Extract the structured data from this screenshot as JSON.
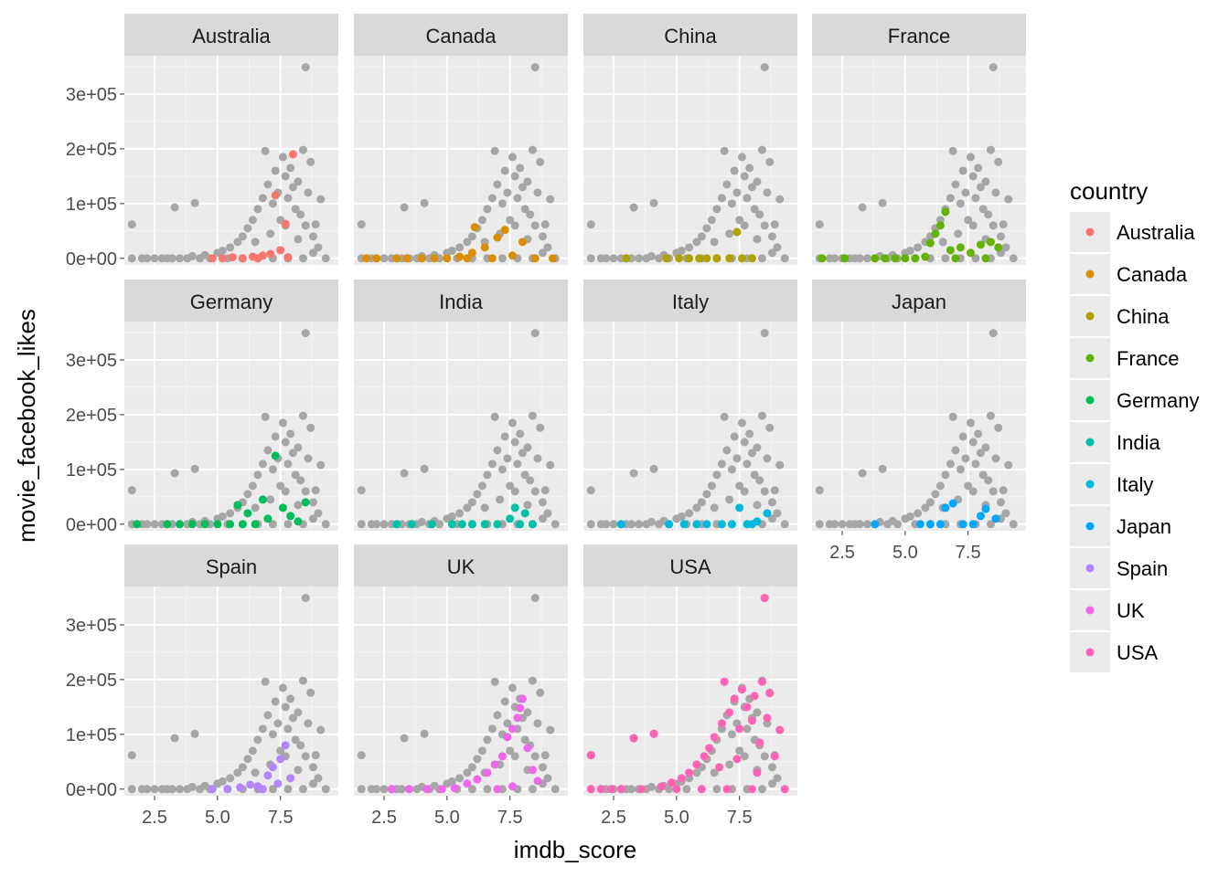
{
  "chart_data": {
    "type": "scatter",
    "facet_by": "country",
    "facets": [
      "Australia",
      "Canada",
      "China",
      "France",
      "Germany",
      "India",
      "Italy",
      "Japan",
      "Spain",
      "UK",
      "USA"
    ],
    "xlabel": "imdb_score",
    "ylabel": "movie_facebook_likes",
    "x_ticks": [
      2.5,
      5.0,
      7.5
    ],
    "x_tick_labels": [
      "2.5",
      "5.0",
      "7.5"
    ],
    "y_ticks": [
      0,
      100000,
      200000,
      300000
    ],
    "y_tick_labels": [
      "0e+00",
      "1e+05",
      "2e+05",
      "3e+05"
    ],
    "xlim": [
      1.3,
      9.8
    ],
    "ylim": [
      -12000,
      370000
    ],
    "legend": {
      "title": "country",
      "position": "right",
      "entries": [
        {
          "label": "Australia",
          "color": "#F8766D"
        },
        {
          "label": "Canada",
          "color": "#DB8E00"
        },
        {
          "label": "China",
          "color": "#AEA200"
        },
        {
          "label": "France",
          "color": "#64B200"
        },
        {
          "label": "Germany",
          "color": "#00BD5C"
        },
        {
          "label": "India",
          "color": "#00C1A7"
        },
        {
          "label": "Italy",
          "color": "#00BADE"
        },
        {
          "label": "Japan",
          "color": "#00A6FF"
        },
        {
          "label": "Spain",
          "color": "#B385FF"
        },
        {
          "label": "UK",
          "color": "#EF67EB"
        },
        {
          "label": "USA",
          "color": "#FF63B6"
        }
      ]
    },
    "background_color": "#A6A6A6",
    "background_points": [
      [
        1.6,
        62000
      ],
      [
        1.6,
        0
      ],
      [
        2.0,
        0
      ],
      [
        2.2,
        0
      ],
      [
        2.5,
        0
      ],
      [
        2.8,
        0
      ],
      [
        3.0,
        0
      ],
      [
        3.2,
        0
      ],
      [
        3.3,
        93000
      ],
      [
        3.5,
        0
      ],
      [
        3.8,
        0
      ],
      [
        4.0,
        4000
      ],
      [
        4.1,
        101000
      ],
      [
        4.3,
        0
      ],
      [
        4.5,
        6000
      ],
      [
        4.7,
        0
      ],
      [
        5.0,
        10000
      ],
      [
        5.2,
        14000
      ],
      [
        5.5,
        20000
      ],
      [
        5.8,
        30000
      ],
      [
        6.0,
        40000
      ],
      [
        6.2,
        55000
      ],
      [
        6.4,
        70000
      ],
      [
        6.6,
        90000
      ],
      [
        6.8,
        110000
      ],
      [
        6.9,
        196000
      ],
      [
        7.0,
        135000
      ],
      [
        7.2,
        100000
      ],
      [
        7.3,
        160000
      ],
      [
        7.4,
        120000
      ],
      [
        7.5,
        70000
      ],
      [
        7.6,
        185000
      ],
      [
        7.7,
        150000
      ],
      [
        7.8,
        110000
      ],
      [
        7.9,
        165000
      ],
      [
        8.0,
        130000
      ],
      [
        8.1,
        90000
      ],
      [
        8.2,
        140000
      ],
      [
        8.3,
        80000
      ],
      [
        8.4,
        198000
      ],
      [
        8.5,
        60000
      ],
      [
        8.5,
        349000
      ],
      [
        8.6,
        120000
      ],
      [
        8.7,
        176000
      ],
      [
        8.8,
        40000
      ],
      [
        8.9,
        62000
      ],
      [
        9.0,
        20000
      ],
      [
        9.1,
        108000
      ],
      [
        9.3,
        0
      ],
      [
        5.4,
        0
      ],
      [
        6.0,
        0
      ],
      [
        6.6,
        0
      ],
      [
        7.2,
        0
      ],
      [
        7.8,
        0
      ],
      [
        8.4,
        0
      ],
      [
        6.5,
        30000
      ],
      [
        7.1,
        45000
      ],
      [
        7.7,
        60000
      ],
      [
        8.2,
        35000
      ],
      [
        8.8,
        10000
      ]
    ],
    "series": [
      {
        "name": "Australia",
        "points": [
          [
            4.8,
            0
          ],
          [
            5.2,
            0
          ],
          [
            5.6,
            2000
          ],
          [
            6.0,
            0
          ],
          [
            6.4,
            3000
          ],
          [
            6.8,
            5000
          ],
          [
            7.1,
            8000
          ],
          [
            7.3,
            115000
          ],
          [
            7.5,
            15000
          ],
          [
            7.7,
            63000
          ],
          [
            8.0,
            190000
          ],
          [
            7.8,
            2000
          ],
          [
            6.6,
            0
          ]
        ]
      },
      {
        "name": "Canada",
        "points": [
          [
            1.8,
            0
          ],
          [
            2.2,
            0
          ],
          [
            3.0,
            0
          ],
          [
            3.4,
            0
          ],
          [
            4.0,
            0
          ],
          [
            4.5,
            0
          ],
          [
            5.0,
            0
          ],
          [
            5.5,
            3000
          ],
          [
            6.0,
            10000
          ],
          [
            6.1,
            57000
          ],
          [
            6.5,
            20000
          ],
          [
            7.0,
            38000
          ],
          [
            7.3,
            52000
          ],
          [
            7.6,
            5000
          ],
          [
            8.0,
            30000
          ],
          [
            8.5,
            0
          ],
          [
            9.2,
            0
          ],
          [
            6.8,
            0
          ],
          [
            5.8,
            0
          ]
        ]
      },
      {
        "name": "China",
        "points": [
          [
            3.0,
            0
          ],
          [
            4.6,
            0
          ],
          [
            5.1,
            0
          ],
          [
            5.5,
            0
          ],
          [
            5.9,
            0
          ],
          [
            6.2,
            0
          ],
          [
            6.6,
            0
          ],
          [
            7.1,
            0
          ],
          [
            7.4,
            48000
          ],
          [
            7.6,
            0
          ],
          [
            8.0,
            0
          ]
        ]
      },
      {
        "name": "France",
        "points": [
          [
            1.7,
            0
          ],
          [
            2.6,
            0
          ],
          [
            3.8,
            0
          ],
          [
            4.2,
            0
          ],
          [
            4.6,
            0
          ],
          [
            5.0,
            0
          ],
          [
            5.4,
            0
          ],
          [
            5.8,
            3000
          ],
          [
            6.0,
            28000
          ],
          [
            6.2,
            45000
          ],
          [
            6.4,
            60000
          ],
          [
            6.6,
            85000
          ],
          [
            6.8,
            15000
          ],
          [
            7.2,
            20000
          ],
          [
            7.6,
            10000
          ],
          [
            8.0,
            25000
          ],
          [
            8.4,
            30000
          ],
          [
            8.7,
            20000
          ],
          [
            7.0,
            0
          ],
          [
            8.2,
            0
          ]
        ]
      },
      {
        "name": "Germany",
        "points": [
          [
            1.8,
            0
          ],
          [
            3.0,
            0
          ],
          [
            3.5,
            0
          ],
          [
            4.0,
            0
          ],
          [
            4.5,
            0
          ],
          [
            5.0,
            0
          ],
          [
            5.5,
            0
          ],
          [
            5.8,
            35000
          ],
          [
            6.2,
            20000
          ],
          [
            6.5,
            0
          ],
          [
            6.8,
            45000
          ],
          [
            7.0,
            10000
          ],
          [
            7.3,
            125000
          ],
          [
            7.6,
            30000
          ],
          [
            7.9,
            15000
          ],
          [
            8.2,
            5000
          ],
          [
            8.5,
            40000
          ],
          [
            6.0,
            0
          ]
        ]
      },
      {
        "name": "India",
        "points": [
          [
            3.0,
            0
          ],
          [
            3.6,
            0
          ],
          [
            4.4,
            0
          ],
          [
            5.2,
            0
          ],
          [
            5.6,
            0
          ],
          [
            6.0,
            0
          ],
          [
            6.5,
            0
          ],
          [
            7.0,
            0
          ],
          [
            7.5,
            10000
          ],
          [
            7.7,
            30000
          ],
          [
            8.1,
            20000
          ],
          [
            8.4,
            0
          ],
          [
            7.9,
            0
          ]
        ]
      },
      {
        "name": "Italy",
        "points": [
          [
            2.8,
            0
          ],
          [
            4.7,
            0
          ],
          [
            5.3,
            0
          ],
          [
            5.8,
            0
          ],
          [
            6.2,
            0
          ],
          [
            6.8,
            0
          ],
          [
            7.2,
            0
          ],
          [
            7.5,
            30000
          ],
          [
            7.8,
            0
          ],
          [
            8.2,
            5000
          ],
          [
            8.6,
            20000
          ],
          [
            8.0,
            0
          ]
        ]
      },
      {
        "name": "Japan",
        "points": [
          [
            3.8,
            0
          ],
          [
            5.6,
            0
          ],
          [
            6.0,
            0
          ],
          [
            6.4,
            0
          ],
          [
            6.6,
            30000
          ],
          [
            6.9,
            38000
          ],
          [
            7.3,
            0
          ],
          [
            7.7,
            0
          ],
          [
            8.0,
            15000
          ],
          [
            8.2,
            28000
          ],
          [
            8.6,
            10000
          ]
        ]
      },
      {
        "name": "Spain",
        "points": [
          [
            4.8,
            0
          ],
          [
            5.4,
            0
          ],
          [
            5.9,
            3000
          ],
          [
            6.3,
            8000
          ],
          [
            6.6,
            5000
          ],
          [
            7.0,
            25000
          ],
          [
            7.2,
            40000
          ],
          [
            7.5,
            55000
          ],
          [
            7.7,
            80000
          ],
          [
            7.9,
            20000
          ],
          [
            6.8,
            0
          ],
          [
            7.4,
            10000
          ]
        ]
      },
      {
        "name": "UK",
        "points": [
          [
            2.8,
            0
          ],
          [
            3.5,
            0
          ],
          [
            4.2,
            0
          ],
          [
            4.8,
            0
          ],
          [
            5.3,
            2000
          ],
          [
            5.8,
            10000
          ],
          [
            6.2,
            18000
          ],
          [
            6.6,
            30000
          ],
          [
            6.9,
            45000
          ],
          [
            7.2,
            60000
          ],
          [
            7.4,
            95000
          ],
          [
            7.6,
            110000
          ],
          [
            7.8,
            130000
          ],
          [
            7.9,
            148000
          ],
          [
            8.0,
            165000
          ],
          [
            8.2,
            75000
          ],
          [
            8.4,
            35000
          ],
          [
            8.6,
            15000
          ],
          [
            7.0,
            0
          ],
          [
            7.6,
            5000
          ]
        ]
      },
      {
        "name": "USA",
        "points": [
          [
            1.6,
            62000
          ],
          [
            1.6,
            0
          ],
          [
            2.0,
            0
          ],
          [
            2.4,
            0
          ],
          [
            2.8,
            0
          ],
          [
            3.3,
            93000
          ],
          [
            3.6,
            0
          ],
          [
            4.1,
            101000
          ],
          [
            4.4,
            5000
          ],
          [
            4.8,
            12000
          ],
          [
            5.2,
            20000
          ],
          [
            5.5,
            30000
          ],
          [
            5.8,
            45000
          ],
          [
            6.1,
            60000
          ],
          [
            6.3,
            75000
          ],
          [
            6.5,
            95000
          ],
          [
            6.8,
            120000
          ],
          [
            6.9,
            196000
          ],
          [
            7.1,
            140000
          ],
          [
            7.3,
            165000
          ],
          [
            7.5,
            110000
          ],
          [
            7.6,
            182000
          ],
          [
            7.8,
            150000
          ],
          [
            8.0,
            125000
          ],
          [
            8.1,
            170000
          ],
          [
            8.3,
            85000
          ],
          [
            8.4,
            196000
          ],
          [
            8.5,
            349000
          ],
          [
            8.6,
            130000
          ],
          [
            8.7,
            175000
          ],
          [
            8.9,
            60000
          ],
          [
            9.1,
            108000
          ],
          [
            9.3,
            0
          ],
          [
            5.0,
            0
          ],
          [
            6.0,
            0
          ],
          [
            7.0,
            0
          ],
          [
            8.0,
            0
          ],
          [
            6.7,
            40000
          ],
          [
            7.4,
            55000
          ],
          [
            8.2,
            30000
          ]
        ]
      }
    ]
  }
}
